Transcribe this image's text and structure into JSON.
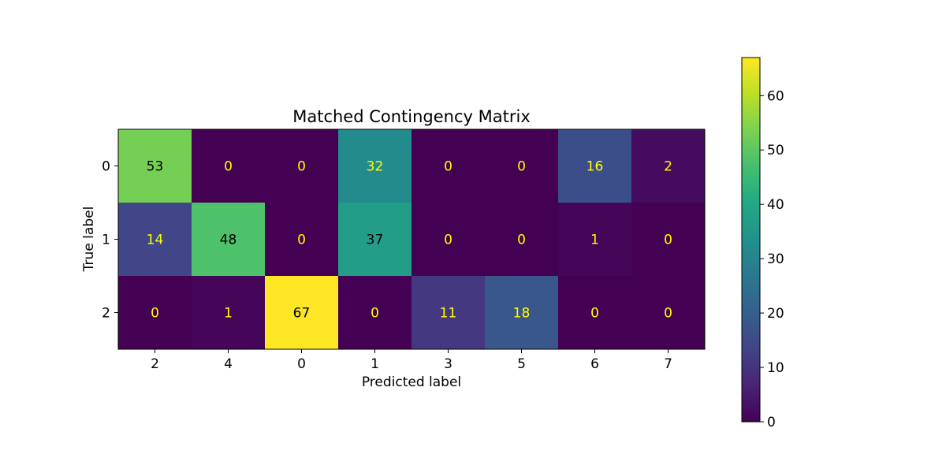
{
  "chart_data": {
    "type": "heatmap",
    "title": "Matched Contingency Matrix",
    "xlabel": "Predicted label",
    "ylabel": "True label",
    "x_categories": [
      "2",
      "4",
      "0",
      "1",
      "3",
      "5",
      "6",
      "7"
    ],
    "y_categories": [
      "0",
      "1",
      "2"
    ],
    "values": [
      [
        53,
        0,
        0,
        32,
        0,
        0,
        16,
        2
      ],
      [
        14,
        48,
        0,
        37,
        0,
        0,
        1,
        0
      ],
      [
        0,
        1,
        67,
        0,
        11,
        18,
        0,
        0
      ]
    ],
    "colormap": "viridis",
    "value_range": [
      0,
      67
    ],
    "colorbar": {
      "ticks": [
        0,
        10,
        20,
        30,
        40,
        50,
        60
      ],
      "placement": "right"
    },
    "grid": false
  }
}
